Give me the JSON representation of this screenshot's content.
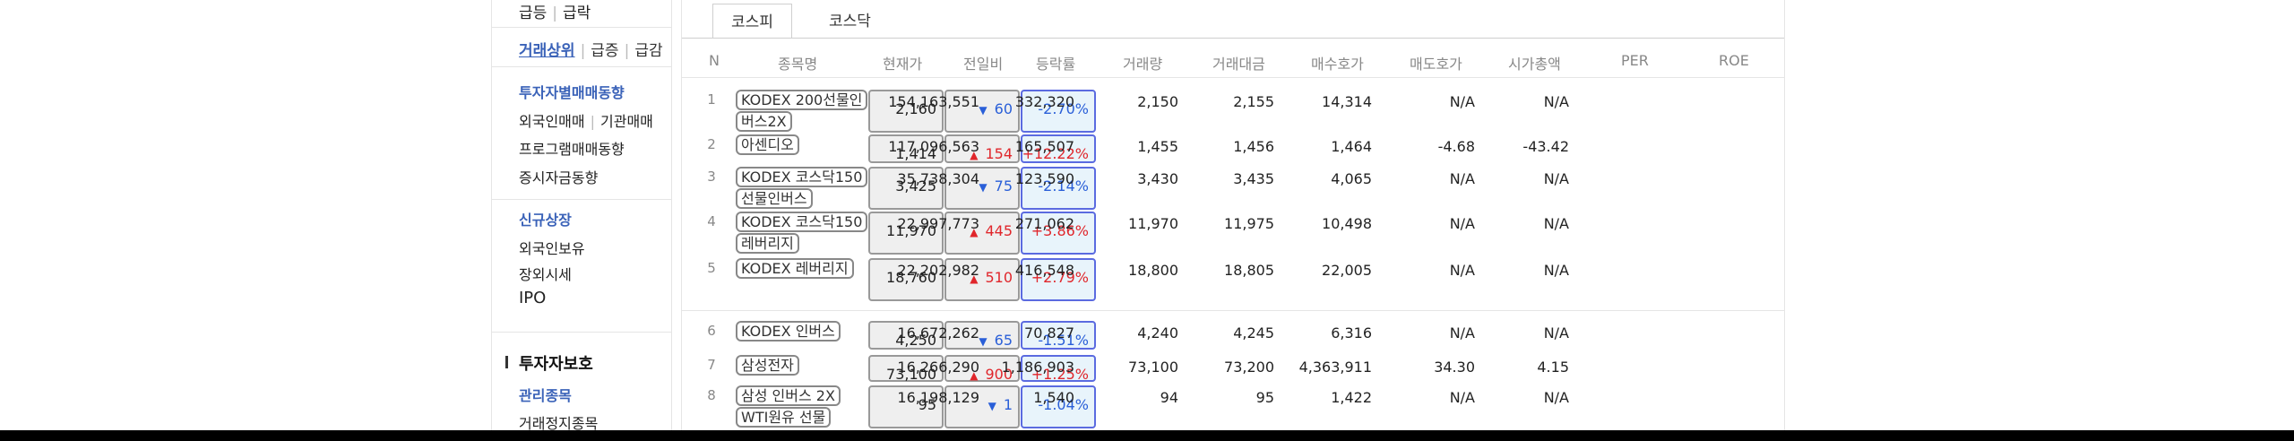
{
  "sidebar": {
    "top_item": {
      "a": "급등",
      "b": "급락"
    },
    "rank_links": {
      "a": "거래상위",
      "b": "급증",
      "c": "급감"
    },
    "investor_section": "투자자별매매동향",
    "foreign_inst": {
      "a": "외국인매매",
      "b": "기관매매"
    },
    "program": "프로그램매매동향",
    "deposit": "증시자금동향",
    "new_listing": "신규상장",
    "foreign_holding": "외국인보유",
    "otc": "장외시세",
    "ipo": "IPO",
    "protection_title": "투자자보호",
    "managed": "관리종목",
    "suspended": "거래정지종목"
  },
  "tabs": [
    {
      "label": "코스피",
      "active": true
    },
    {
      "label": "코스닥",
      "active": false
    }
  ],
  "table": {
    "headers": [
      "N",
      "종목명",
      "현재가",
      "전일비",
      "등락률",
      "거래량",
      "거래대금",
      "매수호가",
      "매도호가",
      "시가총액",
      "PER",
      "ROE"
    ],
    "rows": [
      {
        "n": "1",
        "name": "KODEX 200선물인버스2X",
        "price": "2,160",
        "dir": "down",
        "arrow": "▼",
        "change": "60",
        "rate": "-2.70%",
        "volume": "154,163,551",
        "value": "332,320",
        "bid": "2,150",
        "ask": "2,155",
        "mcap": "14,314",
        "per": "N/A",
        "roe": "N/A"
      },
      {
        "n": "2",
        "name": "아센디오",
        "price": "1,414",
        "dir": "up",
        "arrow": "▲",
        "change": "154",
        "rate": "+12.22%",
        "volume": "117,096,563",
        "value": "165,507",
        "bid": "1,455",
        "ask": "1,456",
        "mcap": "1,464",
        "per": "-4.68",
        "roe": "-43.42"
      },
      {
        "n": "3",
        "name": "KODEX 코스닥150선물인버스",
        "price": "3,425",
        "dir": "down",
        "arrow": "▼",
        "change": "75",
        "rate": "-2.14%",
        "volume": "35,738,304",
        "value": "123,590",
        "bid": "3,430",
        "ask": "3,435",
        "mcap": "4,065",
        "per": "N/A",
        "roe": "N/A"
      },
      {
        "n": "4",
        "name": "KODEX 코스닥150레버리지",
        "price": "11,970",
        "dir": "up",
        "arrow": "▲",
        "change": "445",
        "rate": "+3.86%",
        "volume": "22,997,773",
        "value": "271,062",
        "bid": "11,970",
        "ask": "11,975",
        "mcap": "10,498",
        "per": "N/A",
        "roe": "N/A"
      },
      {
        "n": "5",
        "name": "KODEX 레버리지",
        "price": "18,760",
        "dir": "up",
        "arrow": "▲",
        "change": "510",
        "rate": "+2.79%",
        "volume": "22,202,982",
        "value": "416,548",
        "bid": "18,800",
        "ask": "18,805",
        "mcap": "22,005",
        "per": "N/A",
        "roe": "N/A"
      },
      {
        "n": "6",
        "name": "KODEX 인버스",
        "price": "4,250",
        "dir": "down",
        "arrow": "▼",
        "change": "65",
        "rate": "-1.51%",
        "volume": "16,672,262",
        "value": "70,827",
        "bid": "4,240",
        "ask": "4,245",
        "mcap": "6,316",
        "per": "N/A",
        "roe": "N/A"
      },
      {
        "n": "7",
        "name": "삼성전자",
        "price": "73,100",
        "dir": "up",
        "arrow": "▲",
        "change": "900",
        "rate": "+1.25%",
        "volume": "16,266,290",
        "value": "1,186,903",
        "bid": "73,100",
        "ask": "73,200",
        "mcap": "4,363,911",
        "per": "34.30",
        "roe": "4.15"
      },
      {
        "n": "8",
        "name": "삼성 인버스 2X WTI원유 선물",
        "price": "95",
        "dir": "down",
        "arrow": "▼",
        "change": "1",
        "rate": "-1.04%",
        "volume": "16,198,129",
        "value": "1,540",
        "bid": "94",
        "ask": "95",
        "mcap": "1,422",
        "per": "N/A",
        "roe": "N/A"
      }
    ]
  }
}
